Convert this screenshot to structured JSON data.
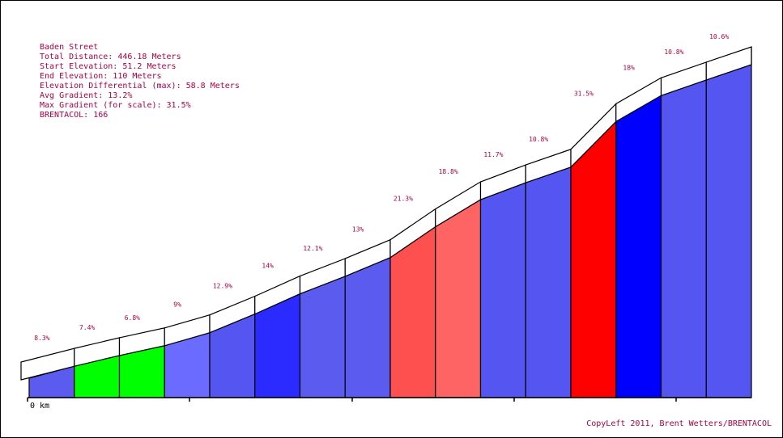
{
  "chart_data": {
    "type": "area",
    "title": "Baden Street",
    "info_lines": [
      "Baden Street",
      "Total Distance: 446.18 Meters",
      "Start Elevation: 51.2 Meters",
      "End Elevation: 110 Meters",
      "Elevation Differential (max): 58.8 Meters",
      "Avg Gradient: 13.2%",
      "Max Gradient (for scale): 31.5%",
      "BRENTACOL: 166"
    ],
    "xlabel": "",
    "ylabel": "",
    "x_tick_labels": [
      "0 km"
    ],
    "x_range": [
      0,
      446.18
    ],
    "y_range": [
      51.2,
      110
    ],
    "segments": [
      {
        "grade": 8.3,
        "label": "8.3%",
        "color": "#5b5bf0"
      },
      {
        "grade": 7.4,
        "label": "7.4%",
        "color": "#00ff00"
      },
      {
        "grade": 6.8,
        "label": "6.8%",
        "color": "#00ff00"
      },
      {
        "grade": 9,
        "label": "9%",
        "color": "#6b6bff"
      },
      {
        "grade": 12.9,
        "label": "12.9%",
        "color": "#5555f2"
      },
      {
        "grade": 14,
        "label": "14%",
        "color": "#2b2bff"
      },
      {
        "grade": 12.1,
        "label": "12.1%",
        "color": "#5b5bf0"
      },
      {
        "grade": 13,
        "label": "13%",
        "color": "#5b5bf0"
      },
      {
        "grade": 21.3,
        "label": "21.3%",
        "color": "#ff5050"
      },
      {
        "grade": 18.8,
        "label": "18.8%",
        "color": "#ff6464"
      },
      {
        "grade": 11.7,
        "label": "11.7%",
        "color": "#5555f2"
      },
      {
        "grade": 10.8,
        "label": "10.8%",
        "color": "#5555f2"
      },
      {
        "grade": 31.5,
        "label": "31.5%",
        "color": "#ff0000"
      },
      {
        "grade": 18,
        "label": "18%",
        "color": "#0000ff"
      },
      {
        "grade": 10.8,
        "label": "10.8%",
        "color": "#5555f2"
      },
      {
        "grade": 10.6,
        "label": "10.6%",
        "color": "#5555f2"
      }
    ]
  },
  "footer": {
    "copyleft": "CopyLeft 2011, Brent Wetters/BRENTACOL"
  }
}
